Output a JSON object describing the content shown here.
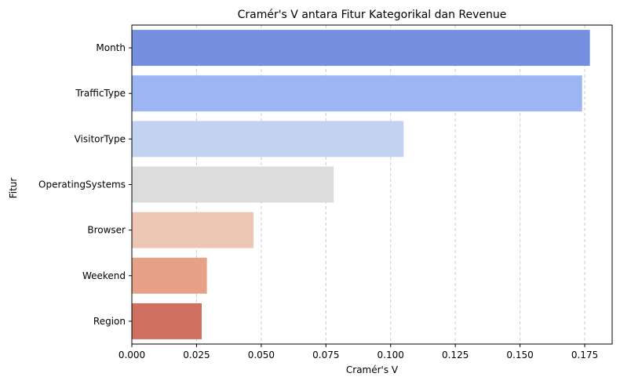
{
  "chart_data": {
    "type": "bar",
    "orientation": "horizontal",
    "title": "Cramér's V antara Fitur Kategorikal dan Revenue",
    "xlabel": "Cramér's V",
    "ylabel": "Fitur",
    "categories": [
      "Month",
      "TrafficType",
      "VisitorType",
      "OperatingSystems",
      "Browser",
      "Weekend",
      "Region"
    ],
    "values": [
      0.177,
      0.174,
      0.105,
      0.078,
      0.047,
      0.029,
      0.027
    ],
    "colors": [
      "#7490DE",
      "#9BB6F2",
      "#C2D2F1",
      "#DCDCDC",
      "#EDC6B3",
      "#E6A188",
      "#D07060"
    ],
    "xlim": [
      0,
      0.1856
    ],
    "x_ticks": [
      "0.000",
      "0.025",
      "0.050",
      "0.075",
      "0.100",
      "0.125",
      "0.150",
      "0.175"
    ],
    "x_tick_values": [
      0,
      0.025,
      0.05,
      0.075,
      0.1,
      0.125,
      0.15,
      0.175
    ],
    "grid": "x-dashed"
  }
}
